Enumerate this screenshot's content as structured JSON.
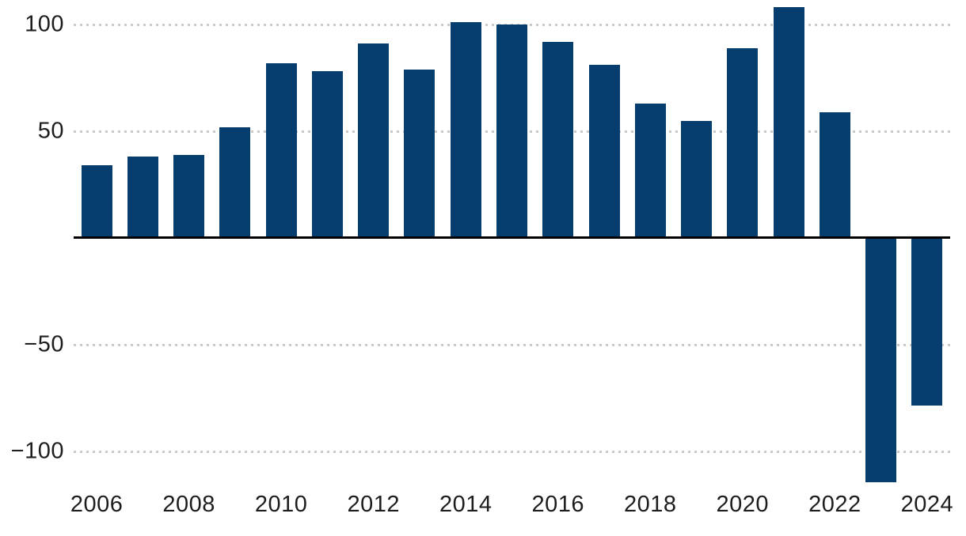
{
  "chart_data": {
    "type": "bar",
    "title": "",
    "xlabel": "",
    "ylabel": "",
    "categories": [
      2006,
      2007,
      2008,
      2009,
      2010,
      2011,
      2012,
      2013,
      2014,
      2015,
      2016,
      2017,
      2018,
      2019,
      2020,
      2021,
      2022,
      2023,
      2024
    ],
    "values": [
      34,
      38,
      39,
      52,
      82,
      78,
      91,
      79,
      101,
      100,
      92,
      81,
      63,
      55,
      89,
      108,
      59,
      -114,
      -78
    ],
    "yticks": [
      {
        "value": 100,
        "label": "100"
      },
      {
        "value": 50,
        "label": "50"
      },
      {
        "value": -50,
        "label": "−50"
      },
      {
        "value": -100,
        "label": "−100"
      }
    ],
    "x_tick_labels": [
      "2006",
      "2008",
      "2010",
      "2012",
      "2014",
      "2016",
      "2018",
      "2020",
      "2022",
      "2024"
    ],
    "ylim": [
      -139,
      112
    ],
    "grid": "horizontal-dotted",
    "legend": "none",
    "colors": {
      "bar": "#053d6e",
      "axis_line": "#000000",
      "gridline": "#c9c9c9",
      "tick_label": "#1d1d1d",
      "background": "#ffffff"
    }
  }
}
